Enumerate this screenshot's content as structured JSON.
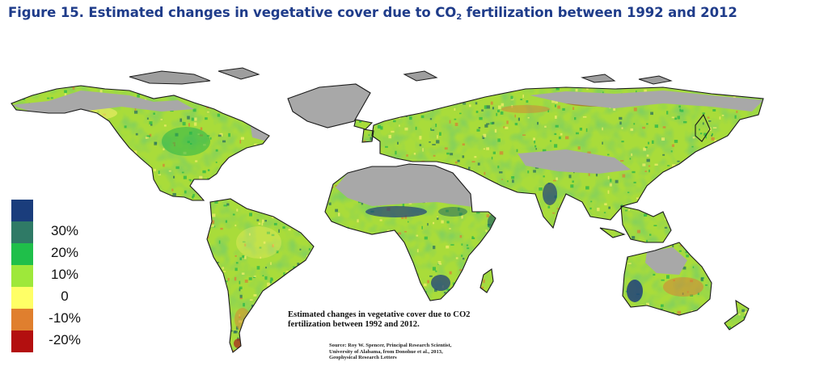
{
  "figure": {
    "title_main": "Figure 15. Estimated changes in vegetative cover due to CO",
    "title_sub": "2",
    "title_end": " fertilization between 1992 and 2012"
  },
  "legend": {
    "items": [
      {
        "label": "",
        "color": "#1a3d7c"
      },
      {
        "label": "30%",
        "color": "#2f7a66"
      },
      {
        "label": "20%",
        "color": "#1fbf4a"
      },
      {
        "label": "10%",
        "color": "#9ee83a"
      },
      {
        "label": "0",
        "color": "#ffff66"
      },
      {
        "label": "-10%",
        "color": "#e07f2e"
      },
      {
        "label": "-20%",
        "color": "#b30f0f"
      }
    ]
  },
  "map": {
    "caption_line1": "Estimated changes in vegetative cover due to CO2",
    "caption_line2": "fertilization between 1992 and 2012.",
    "source_line1": "Source: Roy W. Spencer, Principal Research Scientist,",
    "source_line2": "University of Alabama, from Donohue et al., 2013,",
    "source_line3": "Geophysical Research Letters",
    "colors": {
      "ice": "#9e9e9e",
      "desert": "#a8a8a8",
      "veg_base": "#a9dc3a",
      "veg_green": "#27b54a",
      "veg_dark": "#2b6f5e",
      "veg_yellow": "#f4ee6a",
      "veg_orange": "#d58236",
      "veg_red": "#a81d1d",
      "veg_blue": "#1f3f7a",
      "coast": "#1a1a1a"
    }
  }
}
